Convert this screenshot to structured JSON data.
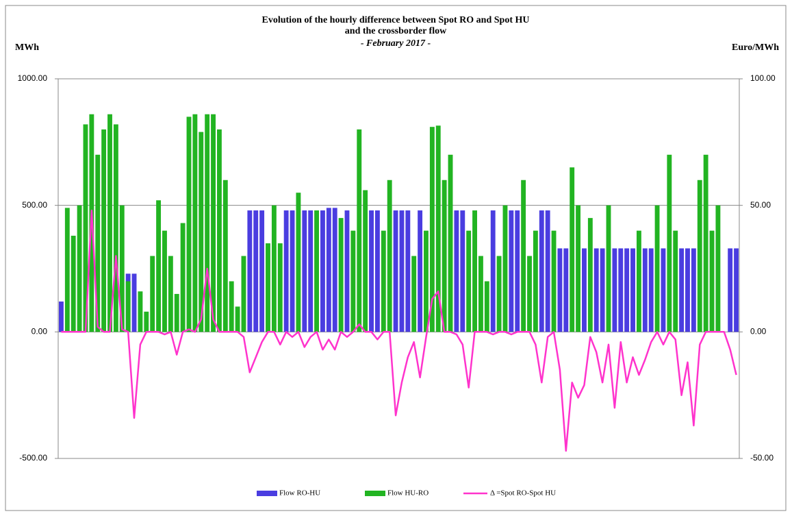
{
  "chart_data": {
    "type": "bar_line",
    "title": [
      "Evolution of the hourly  difference between Spot RO and Spot HU",
      "and the crossborder flow"
    ],
    "subtitle": "- February 2017 -",
    "y_label": "MWh",
    "y2_label": "Euro/MWh",
    "ylim": [
      -500,
      1000
    ],
    "yticks": [
      {
        "value": -500,
        "label": "-500.00"
      },
      {
        "value": 0,
        "label": "0.00"
      },
      {
        "value": 500,
        "label": "500.00"
      },
      {
        "value": 1000,
        "label": "1000.00"
      }
    ],
    "y2lim": [
      -50,
      100
    ],
    "y2ticks": [
      {
        "value": -50,
        "label": "-50.00"
      },
      {
        "value": 0,
        "label": "0.00"
      },
      {
        "value": 50,
        "label": "50.00"
      },
      {
        "value": 100,
        "label": "100.00"
      }
    ],
    "grid": true,
    "legend": "bottom",
    "series": [
      {
        "name": "Flow RO-HU",
        "color": "#4a3de0",
        "type": "bar",
        "values": [
          120,
          0,
          0,
          0,
          0,
          0,
          0,
          0,
          0,
          0,
          0,
          230,
          230,
          0,
          0,
          0,
          0,
          0,
          0,
          0,
          0,
          0,
          0,
          0,
          0,
          0,
          0,
          0,
          0,
          0,
          0,
          480,
          480,
          480,
          0,
          0,
          0,
          480,
          480,
          0,
          480,
          480,
          0,
          480,
          490,
          490,
          0,
          480,
          0,
          0,
          0,
          480,
          480,
          0,
          0,
          480,
          480,
          480,
          0,
          480,
          0,
          0,
          0,
          0,
          0,
          480,
          480,
          0,
          0,
          0,
          0,
          480,
          0,
          0,
          480,
          480,
          0,
          0,
          0,
          480,
          480,
          0,
          330,
          330,
          0,
          0,
          330,
          0,
          330,
          330,
          0,
          330,
          330,
          330,
          330,
          0,
          330,
          330,
          0,
          330,
          0,
          0,
          330,
          330,
          330,
          0,
          0,
          0,
          0,
          0,
          330,
          330
        ]
      },
      {
        "name": "Flow HU-RO",
        "color": "#22b422",
        "type": "bar",
        "values": [
          0,
          490,
          380,
          500,
          820,
          860,
          700,
          800,
          860,
          820,
          500,
          200,
          0,
          160,
          80,
          300,
          520,
          400,
          300,
          150,
          430,
          850,
          860,
          790,
          860,
          860,
          800,
          600,
          200,
          100,
          300,
          0,
          0,
          0,
          350,
          500,
          350,
          0,
          0,
          550,
          0,
          0,
          480,
          0,
          0,
          0,
          450,
          0,
          400,
          800,
          560,
          0,
          0,
          400,
          600,
          0,
          0,
          0,
          300,
          0,
          400,
          810,
          815,
          600,
          700,
          0,
          0,
          400,
          480,
          300,
          200,
          0,
          300,
          500,
          0,
          0,
          600,
          300,
          400,
          0,
          0,
          400,
          0,
          0,
          650,
          500,
          0,
          450,
          0,
          0,
          500,
          0,
          0,
          0,
          0,
          400,
          0,
          0,
          500,
          0,
          700,
          400,
          0,
          0,
          0,
          600,
          700,
          400,
          500,
          0,
          0,
          0
        ]
      },
      {
        "name": "Δ =Spot RO-Spot HU",
        "color": "#ff33cc",
        "type": "line",
        "axis": "y2",
        "values": [
          0,
          0,
          0,
          0,
          0,
          48,
          2,
          0,
          0,
          30,
          1,
          0,
          -34,
          -5,
          0,
          0,
          0,
          -1,
          0,
          -9,
          0,
          1,
          0,
          5,
          25,
          5,
          0,
          0,
          0,
          0,
          -2,
          -16,
          -10,
          -4,
          0,
          0,
          -5,
          0,
          -2,
          0,
          -6,
          -2,
          0,
          -7,
          -3,
          -7,
          0,
          -2,
          0,
          3,
          0,
          0,
          -3,
          0,
          0,
          -33,
          -20,
          -10,
          -4,
          -18,
          -2,
          13,
          16,
          0,
          0,
          -1,
          -5,
          -22,
          0,
          0,
          0,
          -1,
          0,
          0,
          -1,
          0,
          0,
          0,
          -5,
          -20,
          -2,
          0,
          -15,
          -47,
          -20,
          -26,
          -21,
          -2,
          -8,
          -20,
          -5,
          -30,
          -4,
          -20,
          -10,
          -17,
          -11,
          -4,
          0,
          -5,
          0,
          -3,
          -25,
          -12,
          -37,
          -5,
          0,
          0,
          0,
          0,
          -7,
          -17
        ]
      }
    ]
  }
}
